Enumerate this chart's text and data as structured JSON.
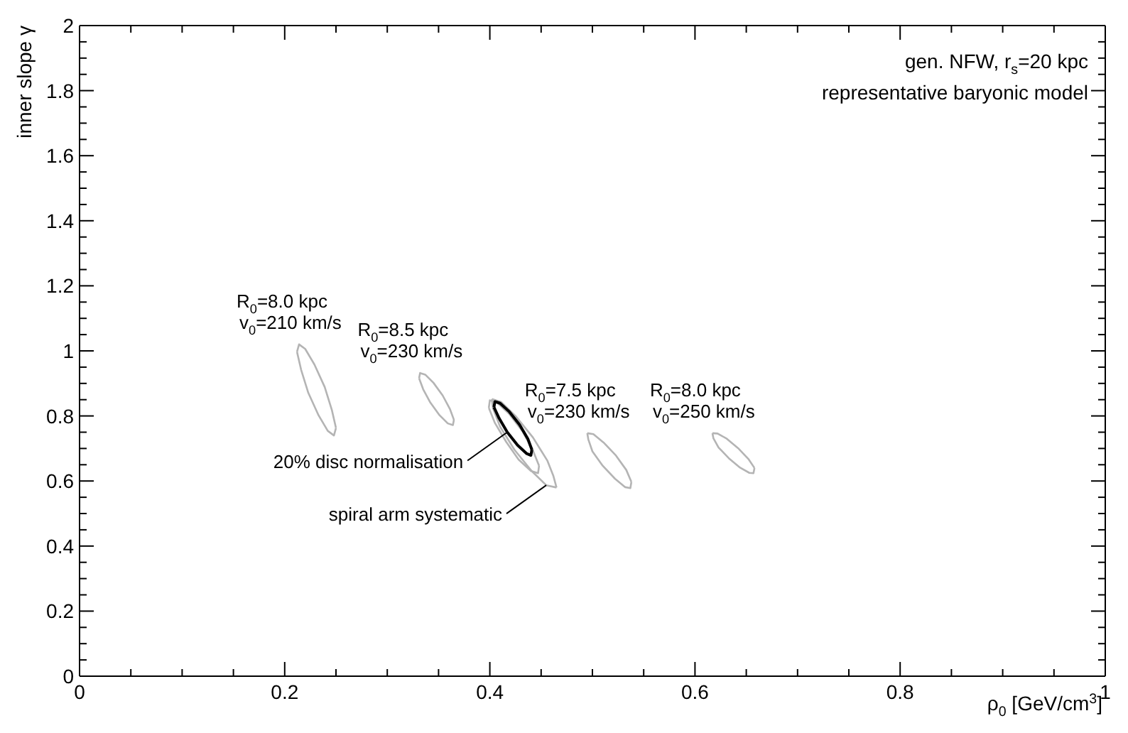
{
  "chart_data": {
    "type": "line",
    "xlabel": "ρ$_{0}$ [GeV/cm$^{3}$]",
    "ylabel": "inner slope γ",
    "xlim": [
      0,
      1
    ],
    "ylim": [
      0,
      2
    ],
    "xticks": [
      0,
      {
        "value": 0.05,
        "label": null
      },
      {
        "value": 0.1,
        "label": null
      },
      {
        "value": 0.15,
        "label": null
      },
      0.2,
      {
        "value": 0.25,
        "label": null
      },
      {
        "value": 0.3,
        "label": null
      },
      {
        "value": 0.35,
        "label": null
      },
      0.4,
      {
        "value": 0.45,
        "label": null
      },
      {
        "value": 0.5,
        "label": null
      },
      {
        "value": 0.55,
        "label": null
      },
      0.6,
      {
        "value": 0.65,
        "label": null
      },
      {
        "value": 0.7,
        "label": null
      },
      {
        "value": 0.75,
        "label": null
      },
      0.8,
      {
        "value": 0.85,
        "label": null
      },
      {
        "value": 0.9,
        "label": null
      },
      {
        "value": 0.95,
        "label": null
      },
      1
    ],
    "yticks": [
      0,
      {
        "value": 0.05,
        "label": null
      },
      {
        "value": 0.1,
        "label": null
      },
      {
        "value": 0.15,
        "label": null
      },
      0.2,
      {
        "value": 0.25,
        "label": null
      },
      {
        "value": 0.3,
        "label": null
      },
      {
        "value": 0.35,
        "label": null
      },
      0.4,
      {
        "value": 0.45,
        "label": null
      },
      {
        "value": 0.5,
        "label": null
      },
      {
        "value": 0.55,
        "label": null
      },
      0.6,
      {
        "value": 0.65,
        "label": null
      },
      {
        "value": 0.7,
        "label": null
      },
      {
        "value": 0.75,
        "label": null
      },
      0.8,
      {
        "value": 0.85,
        "label": null
      },
      {
        "value": 0.9,
        "label": null
      },
      {
        "value": 0.95,
        "label": null
      },
      1,
      {
        "value": 1.05,
        "label": null
      },
      {
        "value": 1.1,
        "label": null
      },
      {
        "value": 1.15,
        "label": null
      },
      1.2,
      {
        "value": 1.25,
        "label": null
      },
      {
        "value": 1.3,
        "label": null
      },
      {
        "value": 1.35,
        "label": null
      },
      1.4,
      {
        "value": 1.45,
        "label": null
      },
      {
        "value": 1.5,
        "label": null
      },
      {
        "value": 1.55,
        "label": null
      },
      1.6,
      {
        "value": 1.65,
        "label": null
      },
      {
        "value": 1.7,
        "label": null
      },
      {
        "value": 1.75,
        "label": null
      },
      1.8,
      {
        "value": 1.85,
        "label": null
      },
      {
        "value": 1.9,
        "label": null
      },
      {
        "value": 1.95,
        "label": null
      },
      2
    ],
    "marker": "none",
    "line_style": "solid",
    "series": [
      {
        "name": "R$_{0}$=8.0 kpc\nv$_{0}$=210 km/s",
        "color": "#b4b4b4",
        "x": [
          0.212,
          0.214,
          0.22,
          0.229,
          0.239,
          0.246,
          0.25
        ],
        "values": [
          0.997,
          1.02,
          1.006,
          0.958,
          0.889,
          0.818,
          0.763
        ]
      },
      {
        "color": "#b4b4b4",
        "x": [
          0.212,
          0.216,
          0.223,
          0.233,
          0.242,
          0.248,
          0.25
        ],
        "values": [
          0.997,
          0.942,
          0.871,
          0.802,
          0.754,
          0.74,
          0.763
        ]
      },
      {
        "name": "R$_{0}$=8.5 kpc\nv$_{0}$=230 km/s",
        "color": "#b4b4b4",
        "x": [
          0.331,
          0.332,
          0.337,
          0.345,
          0.354,
          0.361,
          0.365
        ],
        "values": [
          0.916,
          0.932,
          0.927,
          0.902,
          0.863,
          0.822,
          0.788
        ]
      },
      {
        "color": "#b4b4b4",
        "x": [
          0.331,
          0.335,
          0.342,
          0.351,
          0.359,
          0.364,
          0.365
        ],
        "values": [
          0.916,
          0.882,
          0.841,
          0.802,
          0.777,
          0.772,
          0.788
        ]
      },
      {
        "color": "#b4b4b4",
        "x": [
          0.402,
          0.411,
          0.425,
          0.442,
          0.456,
          0.462,
          0.465
        ],
        "values": [
          0.852,
          0.843,
          0.8,
          0.734,
          0.663,
          0.615,
          0.58
        ]
      },
      {
        "color": "#b4b4b4",
        "x": [
          0.402,
          0.403,
          0.41,
          0.424,
          0.441,
          0.455,
          0.465
        ],
        "values": [
          0.852,
          0.824,
          0.767,
          0.696,
          0.63,
          0.587,
          0.58
        ]
      },
      {
        "color": "#b4b4b4",
        "x": [
          0.399,
          0.4,
          0.407,
          0.419,
          0.432,
          0.442,
          0.448
        ],
        "values": [
          0.825,
          0.848,
          0.841,
          0.806,
          0.752,
          0.694,
          0.647
        ]
      },
      {
        "color": "#b4b4b4",
        "x": [
          0.399,
          0.405,
          0.416,
          0.428,
          0.44,
          0.447,
          0.448
        ],
        "values": [
          0.825,
          0.778,
          0.72,
          0.666,
          0.631,
          0.624,
          0.647
        ]
      },
      {
        "color": "#000000",
        "x": [
          0.404,
          0.405,
          0.41,
          0.419,
          0.429,
          0.437,
          0.441
        ],
        "values": [
          0.827,
          0.844,
          0.839,
          0.813,
          0.773,
          0.73,
          0.696
        ]
      },
      {
        "color": "#000000",
        "x": [
          0.404,
          0.409,
          0.417,
          0.427,
          0.436,
          0.44,
          0.441
        ],
        "values": [
          0.827,
          0.793,
          0.75,
          0.71,
          0.684,
          0.679,
          0.696
        ]
      },
      {
        "name": "R$_{0}$=7.5 kpc\nv$_{0}$=230 km/s",
        "color": "#b4b4b4",
        "x": [
          0.495,
          0.501,
          0.511,
          0.523,
          0.533,
          0.538
        ],
        "values": [
          0.747,
          0.744,
          0.718,
          0.678,
          0.634,
          0.597
        ]
      },
      {
        "color": "#b4b4b4",
        "x": [
          0.495,
          0.496,
          0.5,
          0.51,
          0.522,
          0.532,
          0.537,
          0.538
        ],
        "values": [
          0.747,
          0.728,
          0.691,
          0.647,
          0.607,
          0.581,
          0.578,
          0.597
        ]
      },
      {
        "name": "R$_{0}$=8.0 kpc\nv$_{0}$=250 km/s",
        "color": "#b4b4b4",
        "x": [
          0.617,
          0.622,
          0.631,
          0.642,
          0.652,
          0.658
        ],
        "values": [
          0.747,
          0.746,
          0.73,
          0.701,
          0.668,
          0.64
        ]
      },
      {
        "color": "#b4b4b4",
        "x": [
          0.617,
          0.618,
          0.623,
          0.633,
          0.644,
          0.653,
          0.657,
          0.658
        ],
        "values": [
          0.747,
          0.731,
          0.703,
          0.67,
          0.641,
          0.625,
          0.624,
          0.64
        ]
      }
    ],
    "annotations": [
      "gen. NFW, r$_{s}$=20 kpc",
      "representative baryonic model",
      {
        "text": "20% disc normalisation",
        "x": 0.417,
        "y": 0.75
      },
      {
        "text": "spiral arm systematic",
        "x": 0.455,
        "y": 0.587
      }
    ]
  }
}
